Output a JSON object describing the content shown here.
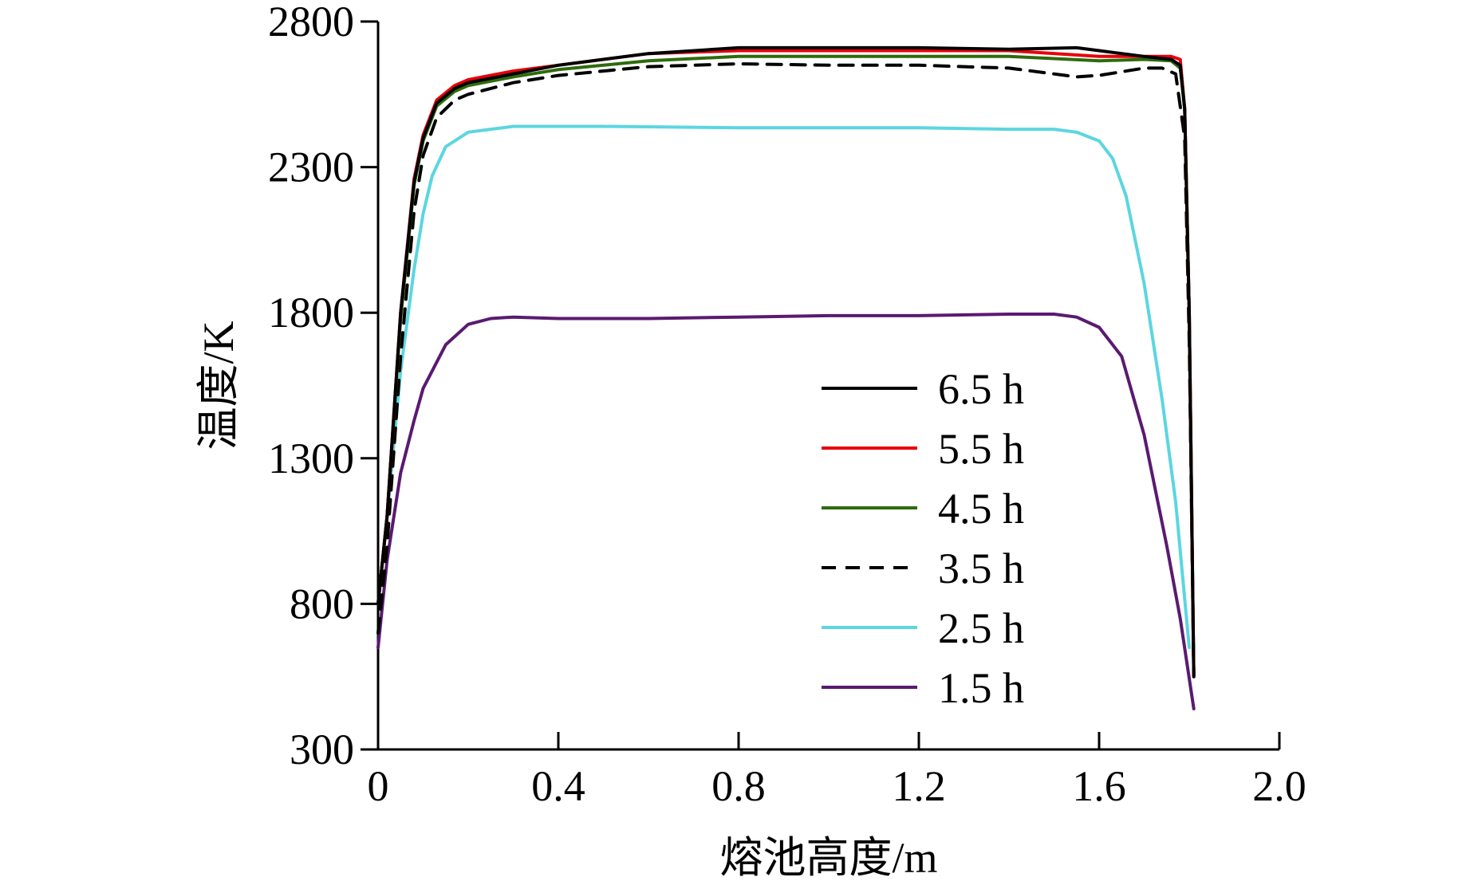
{
  "chart_data": {
    "type": "line",
    "title": "",
    "xlabel": "熔池高度/m",
    "ylabel": "温度/K",
    "xlim": [
      0,
      2.0
    ],
    "ylim": [
      300,
      2800
    ],
    "xticks": [
      0,
      0.4,
      0.8,
      1.2,
      1.6,
      2.0
    ],
    "xtick_labels": [
      "0",
      "0.4",
      "0.8",
      "1.2",
      "1.6",
      "2.0"
    ],
    "yticks": [
      300,
      800,
      1300,
      1800,
      2300,
      2800
    ],
    "ytick_labels": [
      "300",
      "800",
      "1300",
      "1800",
      "2300",
      "2800"
    ],
    "grid": false,
    "legend_position": "bottom-right",
    "series": [
      {
        "name": "6.5 h",
        "color": "#000000",
        "dash": "solid",
        "x": [
          0,
          0.02,
          0.05,
          0.08,
          0.1,
          0.13,
          0.17,
          0.2,
          0.3,
          0.4,
          0.6,
          0.8,
          1.0,
          1.2,
          1.4,
          1.55,
          1.6,
          1.7,
          1.76,
          1.78,
          1.79,
          1.8,
          1.81
        ],
        "y": [
          800,
          1100,
          1800,
          2250,
          2400,
          2520,
          2570,
          2590,
          2620,
          2650,
          2690,
          2710,
          2710,
          2710,
          2705,
          2710,
          2700,
          2680,
          2670,
          2650,
          2500,
          1800,
          550
        ]
      },
      {
        "name": "5.5 h",
        "color": "#e8000b",
        "dash": "solid",
        "x": [
          0,
          0.02,
          0.05,
          0.08,
          0.1,
          0.13,
          0.17,
          0.2,
          0.3,
          0.4,
          0.6,
          0.8,
          1.0,
          1.2,
          1.4,
          1.6,
          1.7,
          1.76,
          1.78,
          1.79,
          1.8,
          1.81
        ],
        "y": [
          800,
          1100,
          1800,
          2260,
          2410,
          2530,
          2580,
          2600,
          2630,
          2650,
          2690,
          2700,
          2700,
          2700,
          2700,
          2680,
          2680,
          2680,
          2670,
          2500,
          1800,
          550
        ]
      },
      {
        "name": "4.5 h",
        "color": "#2e6b0c",
        "dash": "solid",
        "x": [
          0,
          0.02,
          0.05,
          0.08,
          0.1,
          0.13,
          0.17,
          0.2,
          0.3,
          0.4,
          0.6,
          0.8,
          1.0,
          1.2,
          1.4,
          1.6,
          1.7,
          1.76,
          1.78,
          1.79,
          1.8,
          1.81
        ],
        "y": [
          800,
          1100,
          1780,
          2240,
          2390,
          2510,
          2560,
          2580,
          2610,
          2635,
          2665,
          2680,
          2680,
          2680,
          2680,
          2665,
          2670,
          2665,
          2640,
          2500,
          1800,
          560
        ]
      },
      {
        "name": "3.5 h",
        "color": "#000000",
        "dash": "dashed",
        "x": [
          0,
          0.02,
          0.05,
          0.08,
          0.1,
          0.13,
          0.17,
          0.2,
          0.3,
          0.4,
          0.6,
          0.8,
          1.0,
          1.2,
          1.4,
          1.55,
          1.6,
          1.7,
          1.74,
          1.77,
          1.79,
          1.8,
          1.81
        ],
        "y": [
          700,
          1000,
          1650,
          2150,
          2340,
          2470,
          2530,
          2550,
          2590,
          2615,
          2645,
          2655,
          2650,
          2650,
          2640,
          2610,
          2615,
          2640,
          2640,
          2620,
          2400,
          1700,
          560
        ]
      },
      {
        "name": "2.5 h",
        "color": "#5bd6e0",
        "dash": "solid",
        "x": [
          0,
          0.02,
          0.05,
          0.08,
          0.1,
          0.12,
          0.15,
          0.2,
          0.25,
          0.3,
          0.5,
          0.8,
          1.0,
          1.2,
          1.4,
          1.5,
          1.55,
          1.6,
          1.63,
          1.66,
          1.7,
          1.74,
          1.77,
          1.8
        ],
        "y": [
          800,
          1100,
          1600,
          1950,
          2140,
          2270,
          2370,
          2420,
          2430,
          2440,
          2440,
          2435,
          2435,
          2435,
          2430,
          2430,
          2420,
          2390,
          2330,
          2200,
          1900,
          1500,
          1150,
          650
        ]
      },
      {
        "name": "1.5 h",
        "color": "#5a1a70",
        "dash": "solid",
        "x": [
          0,
          0.02,
          0.05,
          0.08,
          0.1,
          0.15,
          0.2,
          0.25,
          0.3,
          0.4,
          0.6,
          0.8,
          1.0,
          1.2,
          1.4,
          1.5,
          1.55,
          1.6,
          1.65,
          1.7,
          1.75,
          1.78,
          1.81
        ],
        "y": [
          650,
          950,
          1250,
          1430,
          1540,
          1690,
          1760,
          1780,
          1785,
          1780,
          1780,
          1785,
          1790,
          1790,
          1795,
          1795,
          1785,
          1750,
          1650,
          1380,
          1000,
          750,
          440
        ]
      }
    ]
  }
}
